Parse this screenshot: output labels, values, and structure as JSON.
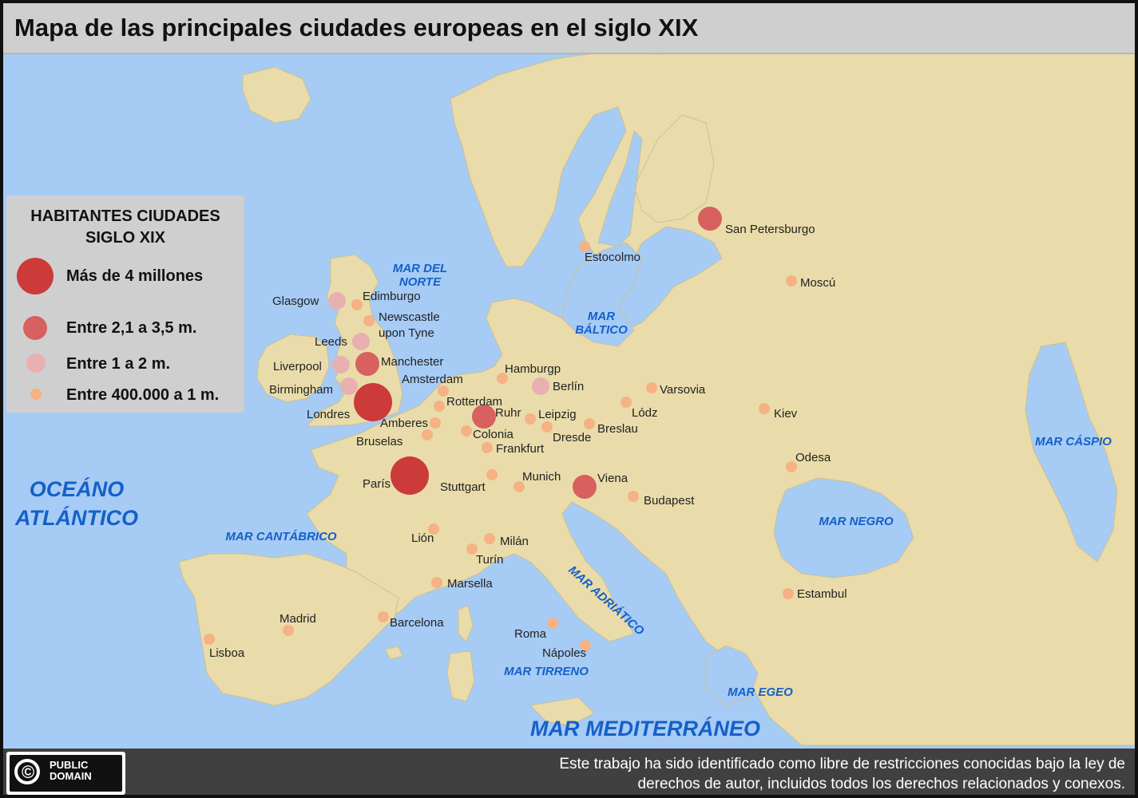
{
  "title": "Mapa de las principales ciudades europeas en el siglo XIX",
  "legend": {
    "title_line1": "HABITANTES CIUDADES",
    "title_line2": "SIGLO XIX",
    "categories": [
      {
        "label": "Más de 4 millones",
        "color": "#cc3a3a"
      },
      {
        "label": "Entre 2,1 a 3,5 m.",
        "color": "#d8605e"
      },
      {
        "label": "Entre 1 a 2 m.",
        "color": "#e8b0b0"
      },
      {
        "label": "Entre 400.000 a 1 m.",
        "color": "#f6b184"
      }
    ]
  },
  "cities": [
    {
      "name": "Londres",
      "category": 0
    },
    {
      "name": "París",
      "category": 0
    },
    {
      "name": "San Petersburgo",
      "category": 1
    },
    {
      "name": "Manchester",
      "category": 1
    },
    {
      "name": "Ruhr",
      "category": 1
    },
    {
      "name": "Viena",
      "category": 1
    },
    {
      "name": "Glasgow",
      "category": 2
    },
    {
      "name": "Leeds",
      "category": 2
    },
    {
      "name": "Liverpool",
      "category": 2
    },
    {
      "name": "Birmingham",
      "category": 2
    },
    {
      "name": "Berlín",
      "category": 2
    },
    {
      "name": "Edimburgo",
      "category": 3
    },
    {
      "name": "Newscastle upon Tyne",
      "category": 3
    },
    {
      "name": "Amsterdam",
      "category": 3
    },
    {
      "name": "Rotterdam",
      "category": 3
    },
    {
      "name": "Amberes",
      "category": 3
    },
    {
      "name": "Bruselas",
      "category": 3
    },
    {
      "name": "Hamburgp",
      "category": 3
    },
    {
      "name": "Leipzig",
      "category": 3
    },
    {
      "name": "Colonia",
      "category": 3
    },
    {
      "name": "Dresde",
      "category": 3
    },
    {
      "name": "Frankfurt",
      "category": 3
    },
    {
      "name": "Breslau",
      "category": 3
    },
    {
      "name": "Lódz",
      "category": 3
    },
    {
      "name": "Varsovia",
      "category": 3
    },
    {
      "name": "Estocolmo",
      "category": 3
    },
    {
      "name": "Moscú",
      "category": 3
    },
    {
      "name": "Kiev",
      "category": 3
    },
    {
      "name": "Odesa",
      "category": 3
    },
    {
      "name": "Munich",
      "category": 3
    },
    {
      "name": "Stuttgart",
      "category": 3
    },
    {
      "name": "Budapest",
      "category": 3
    },
    {
      "name": "Lión",
      "category": 3
    },
    {
      "name": "Milán",
      "category": 3
    },
    {
      "name": "Turín",
      "category": 3
    },
    {
      "name": "Marsella",
      "category": 3
    },
    {
      "name": "Barcelona",
      "category": 3
    },
    {
      "name": "Madrid",
      "category": 3
    },
    {
      "name": "Lisboa",
      "category": 3
    },
    {
      "name": "Roma",
      "category": 3
    },
    {
      "name": "Nápoles",
      "category": 3
    },
    {
      "name": "Estambul",
      "category": 3
    }
  ],
  "seas": {
    "atlantic_1": "OCEÁNO",
    "atlantic_2": "ATLÁNTICO",
    "norte_1": "MAR DEL",
    "norte_2": "NORTE",
    "baltico_1": "MAR",
    "baltico_2": "BÁLTICO",
    "caspio": "MAR CÁSPIO",
    "negro": "MAR NEGRO",
    "cantabrico": "MAR CANTÁBRICO",
    "adriatico": "MAR ADRIÁTICO",
    "tirreno": "MAR TIRRENO",
    "egeo": "MAR EGEO",
    "mediterraneo": "MAR MEDITERRÁNEO"
  },
  "colors": {
    "sea": "#a6cbf5",
    "land": "#e9dcaa",
    "sea_label": "#1560c8"
  },
  "footer": {
    "badge_symbol": "©",
    "badge_line1": "PUBLIC",
    "badge_line2": "DOMAIN",
    "note_line1": "Este trabajo ha sido identificado como libre de restricciones conocidas bajo la ley de",
    "note_line2": "derechos de autor, incluidos todos los derechos relacionados y conexos."
  }
}
